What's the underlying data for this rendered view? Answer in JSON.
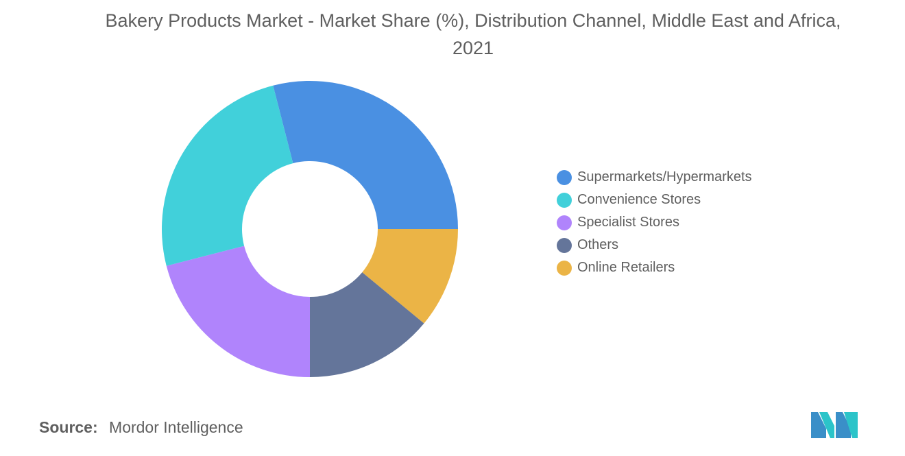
{
  "title": "Bakery Products Market - Market Share (%), Distribution Channel, Middle East and Africa, 2021",
  "source": {
    "label": "Source:",
    "value": "Mordor Intelligence"
  },
  "logo": {
    "icon": "mordor-intelligence-logo",
    "colors": [
      "#3a8fc8",
      "#2bc4c9"
    ]
  },
  "chart_data": {
    "type": "pie",
    "donut": true,
    "title": "Bakery Products Market - Market Share (%), Distribution Channel, Middle East and Africa, 2021",
    "legend_position": "right",
    "data_labels": false,
    "slices": [
      {
        "label": "Supermarkets/Hypermarkets",
        "value": 29,
        "color": "#4a90e2"
      },
      {
        "label": "Online Retailers",
        "value": 11,
        "color": "#ebb446"
      },
      {
        "label": "Others",
        "value": 14,
        "color": "#64759a"
      },
      {
        "label": "Specialist Stores",
        "value": 21,
        "color": "#b084fc"
      },
      {
        "label": "Convenience Stores",
        "value": 25,
        "color": "#41d0da"
      }
    ],
    "legend_order": [
      "Supermarkets/Hypermarkets",
      "Convenience Stores",
      "Specialist Stores",
      "Others",
      "Online Retailers"
    ]
  }
}
